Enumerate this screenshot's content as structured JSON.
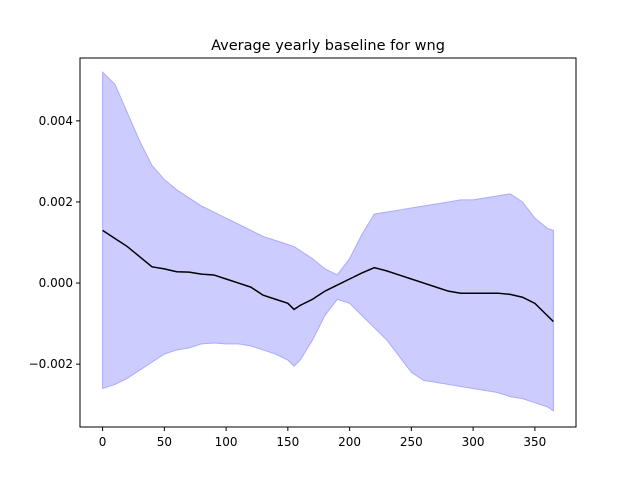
{
  "chart_data": {
    "type": "line",
    "title": "Average yearly baseline for wng",
    "xlabel": "",
    "ylabel": "",
    "xlim": [
      -18.3,
      383.3
    ],
    "ylim": [
      -0.00355,
      0.00555
    ],
    "xticks": [
      0,
      50,
      100,
      150,
      200,
      250,
      300,
      350
    ],
    "xtick_labels": [
      "0",
      "50",
      "100",
      "150",
      "200",
      "250",
      "300",
      "350"
    ],
    "yticks": [
      -0.002,
      0.0,
      0.002,
      0.004
    ],
    "ytick_labels": [
      "−0.002",
      "0.000",
      "0.002",
      "0.004"
    ],
    "grid": false,
    "colors": {
      "mean": "#000000",
      "band_fill": "#ccccff",
      "band_edge": "#aaaaff"
    },
    "x": [
      0,
      10,
      20,
      30,
      40,
      50,
      60,
      70,
      80,
      90,
      100,
      110,
      120,
      130,
      140,
      150,
      155,
      160,
      170,
      180,
      190,
      200,
      210,
      220,
      230,
      240,
      250,
      260,
      270,
      280,
      290,
      300,
      310,
      320,
      330,
      340,
      350,
      360,
      365
    ],
    "series": [
      {
        "role": "mean",
        "values": [
          0.0013,
          0.0011,
          0.0009,
          0.00065,
          0.0004,
          0.00035,
          0.00028,
          0.00027,
          0.00022,
          0.0002,
          0.0001,
          0.0,
          -0.0001,
          -0.0003,
          -0.0004,
          -0.0005,
          -0.00065,
          -0.00055,
          -0.0004,
          -0.0002,
          -5e-05,
          0.0001,
          0.00025,
          0.00038,
          0.0003,
          0.0002,
          0.0001,
          0.0,
          -0.0001,
          -0.0002,
          -0.00025,
          -0.00025,
          -0.00025,
          -0.00025,
          -0.00028,
          -0.00035,
          -0.0005,
          -0.0008,
          -0.00095
        ]
      },
      {
        "role": "upper",
        "values": [
          0.0052,
          0.0049,
          0.0042,
          0.0035,
          0.0029,
          0.00255,
          0.0023,
          0.0021,
          0.0019,
          0.00175,
          0.0016,
          0.00145,
          0.0013,
          0.00115,
          0.00105,
          0.00095,
          0.0009,
          0.0008,
          0.0006,
          0.00035,
          0.0002,
          0.0006,
          0.0012,
          0.0017,
          0.00175,
          0.0018,
          0.00185,
          0.0019,
          0.00195,
          0.002,
          0.00205,
          0.00205,
          0.0021,
          0.00215,
          0.0022,
          0.002,
          0.0016,
          0.00135,
          0.0013
        ]
      },
      {
        "role": "lower",
        "values": [
          -0.0026,
          -0.0025,
          -0.00235,
          -0.00215,
          -0.00195,
          -0.00175,
          -0.00165,
          -0.0016,
          -0.0015,
          -0.00148,
          -0.0015,
          -0.0015,
          -0.00155,
          -0.00165,
          -0.00175,
          -0.0019,
          -0.00205,
          -0.0019,
          -0.0014,
          -0.0008,
          -0.0004,
          -0.0005,
          -0.0008,
          -0.0011,
          -0.0014,
          -0.0018,
          -0.0022,
          -0.0024,
          -0.00245,
          -0.0025,
          -0.00255,
          -0.0026,
          -0.00265,
          -0.0027,
          -0.0028,
          -0.00285,
          -0.00295,
          -0.00305,
          -0.00315
        ]
      }
    ]
  }
}
